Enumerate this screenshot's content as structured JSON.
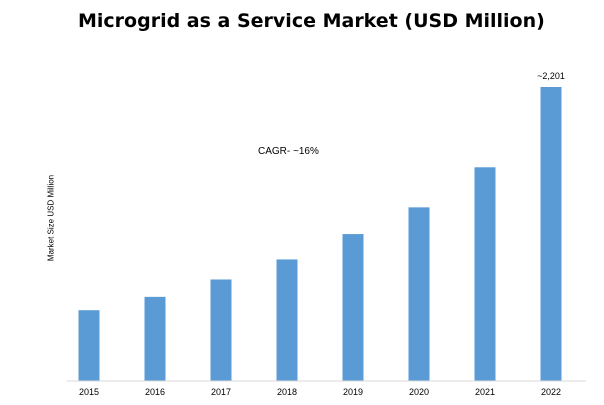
{
  "chart_data": {
    "type": "bar",
    "title": "Microgrid as a Service Market (USD Million)",
    "ylabel": "Market Size USD Million",
    "xlabel": "",
    "categories": [
      "2015",
      "2016",
      "2017",
      "2018",
      "2019",
      "2020",
      "2021",
      "2022"
    ],
    "values": [
      530,
      630,
      760,
      910,
      1100,
      1300,
      1600,
      2201
    ],
    "data_labels": [
      {
        "index": 7,
        "text": "~2,201"
      }
    ],
    "annotations": [
      {
        "text": "CAGR- ~16%"
      }
    ],
    "ylim": [
      0,
      2201
    ],
    "grid": false,
    "legend": "none",
    "colors": {
      "bar": "#5B9BD5",
      "axis": "#D9D9D9"
    }
  }
}
